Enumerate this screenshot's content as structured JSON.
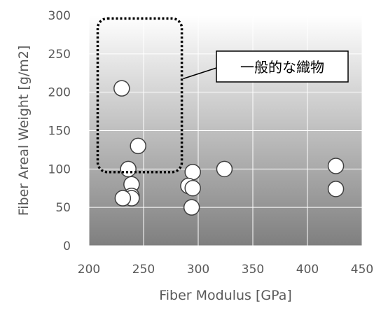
{
  "chart_data": {
    "type": "scatter",
    "title": "",
    "xlabel": "Fiber Modulus [GPa]",
    "ylabel": "Fiber Areal Weight [g/m2]",
    "xlim": [
      200,
      450
    ],
    "ylim": [
      0,
      300
    ],
    "xticks": [
      200,
      250,
      300,
      350,
      400,
      450
    ],
    "yticks": [
      0,
      50,
      100,
      150,
      200,
      250,
      300
    ],
    "grid": true,
    "background": "vertical gradient from white (top) to dark gray (bottom)",
    "marker": "white circle with dark outline",
    "series": [
      {
        "points": [
          {
            "x": 230,
            "y": 205
          },
          {
            "x": 245,
            "y": 130
          },
          {
            "x": 236,
            "y": 100
          },
          {
            "x": 239,
            "y": 80
          },
          {
            "x": 239,
            "y": 65
          },
          {
            "x": 239,
            "y": 62
          },
          {
            "x": 231,
            "y": 62
          },
          {
            "x": 295,
            "y": 96
          },
          {
            "x": 291,
            "y": 78
          },
          {
            "x": 295,
            "y": 75
          },
          {
            "x": 294,
            "y": 50
          },
          {
            "x": 324,
            "y": 100
          },
          {
            "x": 426,
            "y": 104
          },
          {
            "x": 426,
            "y": 74
          }
        ]
      }
    ],
    "annotations": [
      {
        "text": "一般的な織物",
        "shape": "dotted rounded rectangle",
        "region": {
          "x_range": [
            208,
            285
          ],
          "y_range": [
            96,
            296
          ]
        }
      }
    ]
  },
  "colors": {
    "plot_top": "#ffffff",
    "plot_bottom": "#7f7f7f",
    "grid": "#ffffff",
    "marker_fill": "#ffffff",
    "marker_stroke": "#404040",
    "tick_text": "#595959",
    "annotation": "#000000"
  }
}
